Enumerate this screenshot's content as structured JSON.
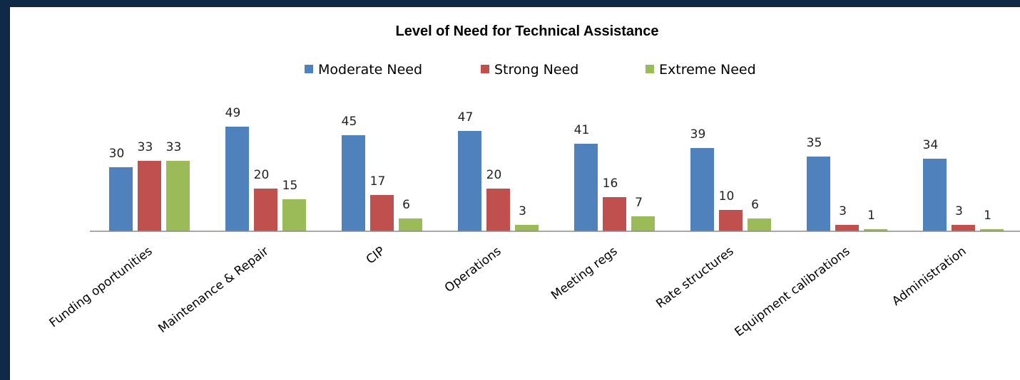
{
  "chart_data": {
    "type": "bar",
    "title": "Level of Need for Technical Assistance",
    "categories": [
      "Funding oportunities",
      "Maintenance & Repair",
      "CIP",
      "Operations",
      "Meeting regs",
      "Rate structures",
      "Equipment calibrations",
      "Administration"
    ],
    "series": [
      {
        "name": "Moderate Need",
        "color": "#4f81bd",
        "values": [
          30,
          49,
          45,
          47,
          41,
          39,
          35,
          34
        ]
      },
      {
        "name": "Strong Need",
        "color": "#c0504d",
        "values": [
          33,
          20,
          17,
          20,
          16,
          10,
          3,
          3
        ]
      },
      {
        "name": "Extreme Need",
        "color": "#9bbb59",
        "values": [
          33,
          15,
          6,
          3,
          7,
          6,
          1,
          1
        ]
      }
    ],
    "xlabel": "",
    "ylabel": "",
    "ylim": [
      0,
      55
    ],
    "grid": false,
    "legend": "top-center",
    "data_labels": true
  }
}
